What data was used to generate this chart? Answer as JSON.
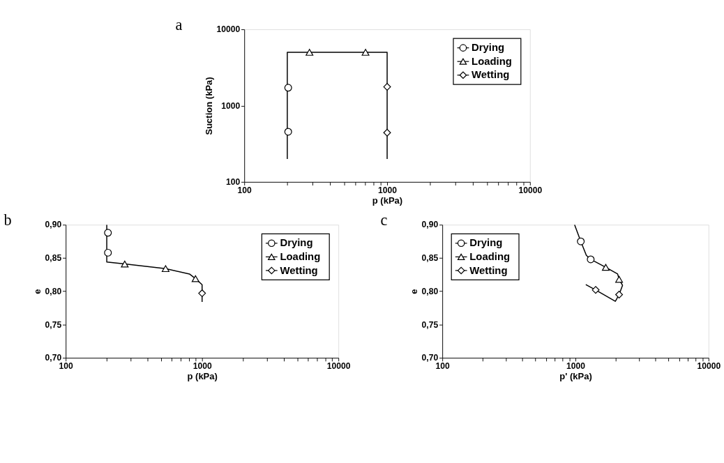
{
  "chart_data": [
    {
      "type": "line",
      "title": "a",
      "xlabel": "p (kPa)",
      "ylabel": "Suction (kPa)",
      "log": "xy",
      "legend": "top right",
      "grid": false,
      "xlim": [
        100,
        10000
      ],
      "ylim": [
        100,
        10000
      ],
      "xticks": [
        100,
        {
          "value": 200,
          "label": null
        },
        {
          "value": 300,
          "label": null
        },
        {
          "value": 400,
          "label": null
        },
        {
          "value": 500,
          "label": null
        },
        {
          "value": 600,
          "label": null
        },
        {
          "value": 700,
          "label": null
        },
        {
          "value": 800,
          "label": null
        },
        {
          "value": 900,
          "label": null
        },
        1000,
        {
          "value": 2000,
          "label": null
        },
        {
          "value": 3000,
          "label": null
        },
        {
          "value": 4000,
          "label": null
        },
        {
          "value": 5000,
          "label": null
        },
        {
          "value": 6000,
          "label": null
        },
        {
          "value": 7000,
          "label": null
        },
        {
          "value": 8000,
          "label": null
        },
        {
          "value": 9000,
          "label": null
        },
        10000
      ],
      "yticks": [
        100,
        1000,
        10000
      ],
      "series": [
        {
          "type": "line",
          "color": "#000000",
          "marker": "none",
          "x": [
            200,
            200,
            1000,
            1000
          ],
          "values": [
            200,
            5000,
            5000,
            200
          ]
        },
        {
          "name": "Drying",
          "type": "scatter",
          "color": "#ffffff",
          "marker": "circle",
          "x": [
            203,
            203
          ],
          "values": [
            454,
            1717
          ]
        },
        {
          "name": "Loading",
          "type": "scatter",
          "color": "#ffffff",
          "marker": "triangle",
          "x": [
            286,
            706
          ],
          "values": [
            5000,
            5000
          ]
        },
        {
          "name": "Wetting",
          "type": "scatter",
          "color": "#ffffff",
          "marker": "diamond",
          "x": [
            1000,
            1000
          ],
          "values": [
            1762,
            442
          ]
        }
      ]
    },
    {
      "type": "line",
      "title": "b",
      "xlabel": "p (kPa)",
      "ylabel": "e",
      "log": "x",
      "legend": "top right",
      "grid": false,
      "xlim": [
        100,
        10000
      ],
      "ylim": [
        0.7,
        0.9
      ],
      "xticks": [
        100,
        {
          "value": 200,
          "label": null
        },
        {
          "value": 300,
          "label": null
        },
        {
          "value": 400,
          "label": null
        },
        {
          "value": 500,
          "label": null
        },
        {
          "value": 600,
          "label": null
        },
        {
          "value": 700,
          "label": null
        },
        {
          "value": 800,
          "label": null
        },
        {
          "value": 900,
          "label": null
        },
        1000,
        {
          "value": 2000,
          "label": null
        },
        {
          "value": 3000,
          "label": null
        },
        {
          "value": 4000,
          "label": null
        },
        {
          "value": 5000,
          "label": null
        },
        {
          "value": 6000,
          "label": null
        },
        {
          "value": 7000,
          "label": null
        },
        {
          "value": 8000,
          "label": null
        },
        {
          "value": 9000,
          "label": null
        },
        10000
      ],
      "yticks": [
        {
          "value": 0.7,
          "label": "0,70"
        },
        {
          "value": 0.75,
          "label": "0,75"
        },
        {
          "value": 0.8,
          "label": "0,80"
        },
        {
          "value": 0.85,
          "label": "0,85"
        },
        {
          "value": 0.9,
          "label": "0,90"
        }
      ],
      "series": [
        {
          "type": "line",
          "color": "#000000",
          "marker": "none",
          "x": [
            200,
            200,
            271,
            540,
            808,
            895,
            1000,
            1000
          ],
          "values": [
            0.9,
            0.844,
            0.841,
            0.834,
            0.826,
            0.819,
            0.81,
            0.784
          ]
        },
        {
          "name": "Drying",
          "type": "scatter",
          "color": "#ffffff",
          "marker": "circle",
          "x": [
            204,
            204
          ],
          "values": [
            0.888,
            0.858
          ]
        },
        {
          "name": "Loading",
          "type": "scatter",
          "color": "#ffffff",
          "marker": "triangle",
          "x": [
            271,
            540,
            895
          ],
          "values": [
            0.841,
            0.834,
            0.819
          ]
        },
        {
          "name": "Wetting",
          "type": "scatter",
          "color": "#ffffff",
          "marker": "diamond",
          "x": [
            1000
          ],
          "values": [
            0.797
          ]
        }
      ]
    },
    {
      "type": "line",
      "title": "c",
      "xlabel": "p' (kPa)",
      "ylabel": "e",
      "log": "x",
      "legend": "top left",
      "grid": false,
      "xlim": [
        100,
        10000
      ],
      "ylim": [
        0.7,
        0.9
      ],
      "xticks": [
        100,
        {
          "value": 200,
          "label": null
        },
        {
          "value": 300,
          "label": null
        },
        {
          "value": 400,
          "label": null
        },
        {
          "value": 500,
          "label": null
        },
        {
          "value": 600,
          "label": null
        },
        {
          "value": 700,
          "label": null
        },
        {
          "value": 800,
          "label": null
        },
        {
          "value": 900,
          "label": null
        },
        1000,
        {
          "value": 2000,
          "label": null
        },
        {
          "value": 3000,
          "label": null
        },
        {
          "value": 4000,
          "label": null
        },
        {
          "value": 5000,
          "label": null
        },
        {
          "value": 6000,
          "label": null
        },
        {
          "value": 7000,
          "label": null
        },
        {
          "value": 8000,
          "label": null
        },
        {
          "value": 9000,
          "label": null
        },
        10000
      ],
      "yticks": [
        {
          "value": 0.7,
          "label": "0,70"
        },
        {
          "value": 0.75,
          "label": "0,75"
        },
        {
          "value": 0.8,
          "label": "0,80"
        },
        {
          "value": 0.85,
          "label": "0,85"
        },
        {
          "value": 0.9,
          "label": "0,90"
        }
      ],
      "series": [
        {
          "type": "line",
          "color": "#000000",
          "marker": "none",
          "x": [
            985,
            1097,
            1208,
            1302,
            1690,
            2074,
            2128,
            2258,
            2128,
            1995,
            1419,
            1196
          ],
          "values": [
            0.9,
            0.875,
            0.854,
            0.848,
            0.836,
            0.826,
            0.818,
            0.809,
            0.795,
            0.785,
            0.802,
            0.81
          ]
        },
        {
          "name": "Drying",
          "type": "scatter",
          "color": "#ffffff",
          "marker": "circle",
          "x": [
            1097,
            1302
          ],
          "values": [
            0.875,
            0.848
          ]
        },
        {
          "name": "Loading",
          "type": "scatter",
          "color": "#ffffff",
          "marker": "triangle",
          "x": [
            1690,
            2128
          ],
          "values": [
            0.836,
            0.818
          ]
        },
        {
          "name": "Wetting",
          "type": "scatter",
          "color": "#ffffff",
          "marker": "diamond",
          "x": [
            2128,
            1419
          ],
          "values": [
            0.795,
            0.802
          ]
        }
      ]
    }
  ]
}
